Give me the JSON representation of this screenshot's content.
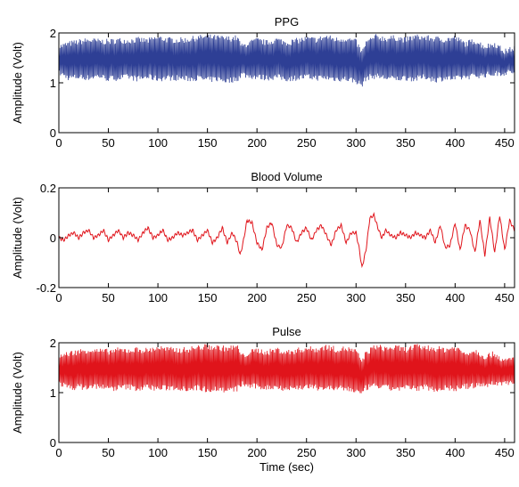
{
  "chart_data": [
    {
      "type": "line",
      "title": "PPG",
      "xlabel": "",
      "ylabel": "Amplitude (Volt)",
      "xlim": [
        0,
        460
      ],
      "ylim": [
        0,
        2
      ],
      "xticks": [
        0,
        50,
        100,
        150,
        200,
        250,
        300,
        350,
        400,
        450
      ],
      "xtick_labels": [
        "0",
        "50",
        "100",
        "150",
        "200",
        "250",
        "300",
        "350",
        "400",
        "450"
      ],
      "yticks": [
        0,
        1,
        2
      ],
      "ytick_labels": [
        "0",
        "1",
        "2"
      ],
      "color": "#2e3f95",
      "series": [
        {
          "x": [
            0,
            10,
            20,
            30,
            40,
            50,
            60,
            70,
            80,
            90,
            100,
            110,
            120,
            130,
            140,
            150,
            160,
            170,
            180,
            185,
            190,
            200,
            210,
            220,
            230,
            240,
            250,
            260,
            270,
            280,
            290,
            300,
            306,
            310,
            320,
            330,
            340,
            350,
            360,
            370,
            380,
            390,
            400,
            410,
            420,
            430,
            440,
            450,
            460
          ],
          "upper": [
            1.72,
            1.78,
            1.82,
            1.85,
            1.83,
            1.82,
            1.85,
            1.84,
            1.86,
            1.84,
            1.9,
            1.86,
            1.85,
            1.86,
            1.9,
            1.92,
            1.9,
            1.88,
            1.9,
            1.72,
            1.78,
            1.85,
            1.8,
            1.86,
            1.8,
            1.84,
            1.88,
            1.86,
            1.92,
            1.86,
            1.88,
            1.82,
            1.6,
            1.8,
            1.92,
            1.88,
            1.9,
            1.86,
            1.92,
            1.9,
            1.88,
            1.86,
            1.9,
            1.78,
            1.84,
            1.72,
            1.78,
            1.62,
            1.7
          ],
          "lower": [
            1.2,
            1.1,
            1.12,
            1.1,
            1.14,
            1.08,
            1.1,
            1.12,
            1.08,
            1.12,
            1.08,
            1.1,
            1.1,
            1.08,
            1.1,
            1.06,
            1.08,
            1.04,
            1.08,
            1.18,
            1.14,
            1.12,
            1.1,
            1.12,
            1.08,
            1.1,
            1.12,
            1.1,
            1.1,
            1.08,
            1.08,
            1.04,
            0.95,
            1.1,
            1.14,
            1.1,
            1.08,
            1.1,
            1.08,
            1.12,
            1.06,
            1.1,
            1.08,
            1.12,
            1.14,
            1.16,
            1.18,
            1.2,
            1.22
          ]
        }
      ]
    },
    {
      "type": "line",
      "title": "Blood Volume",
      "xlabel": "",
      "ylabel": "Amplitude (Volt)",
      "xlim": [
        0,
        460
      ],
      "ylim": [
        -0.2,
        0.2
      ],
      "xticks": [
        0,
        50,
        100,
        150,
        200,
        250,
        300,
        350,
        400,
        450
      ],
      "xtick_labels": [
        "0",
        "50",
        "100",
        "150",
        "200",
        "250",
        "300",
        "350",
        "400",
        "450"
      ],
      "yticks": [
        -0.2,
        0,
        0.2
      ],
      "ytick_labels": [
        "-0.2",
        "0",
        "0.2"
      ],
      "color": "#e0141b",
      "series": [
        {
          "x": [
            0,
            5,
            10,
            15,
            20,
            25,
            30,
            35,
            40,
            45,
            50,
            55,
            60,
            65,
            70,
            75,
            80,
            85,
            90,
            95,
            100,
            105,
            110,
            115,
            120,
            125,
            130,
            135,
            140,
            145,
            150,
            155,
            160,
            165,
            170,
            175,
            180,
            183,
            186,
            190,
            195,
            200,
            205,
            210,
            215,
            220,
            225,
            230,
            235,
            240,
            245,
            250,
            255,
            260,
            265,
            270,
            275,
            280,
            285,
            290,
            295,
            300,
            303,
            306,
            310,
            314,
            318,
            322,
            326,
            330,
            335,
            340,
            345,
            350,
            355,
            360,
            365,
            370,
            375,
            380,
            385,
            390,
            395,
            400,
            405,
            410,
            415,
            420,
            425,
            430,
            435,
            440,
            445,
            450,
            455,
            460
          ],
          "y": [
            0.0,
            -0.01,
            0.01,
            0.02,
            0.0,
            0.02,
            0.03,
            0.0,
            0.01,
            0.03,
            -0.01,
            0.01,
            0.03,
            0.0,
            0.02,
            0.01,
            -0.01,
            0.02,
            0.04,
            0.0,
            0.01,
            0.03,
            -0.01,
            0.0,
            0.02,
            0.01,
            0.02,
            0.03,
            -0.01,
            0.01,
            0.03,
            -0.02,
            0.0,
            0.04,
            -0.02,
            0.02,
            -0.02,
            -0.07,
            -0.02,
            0.07,
            0.06,
            -0.02,
            -0.05,
            0.04,
            0.06,
            -0.03,
            -0.04,
            0.05,
            0.04,
            -0.02,
            0.02,
            0.04,
            -0.01,
            0.03,
            0.05,
            0.01,
            -0.03,
            0.03,
            0.05,
            -0.02,
            0.02,
            0.02,
            -0.04,
            -0.12,
            -0.05,
            0.08,
            0.09,
            0.04,
            0.0,
            0.03,
            0.01,
            0.0,
            0.02,
            0.01,
            0.0,
            0.02,
            0.01,
            0.0,
            0.03,
            -0.02,
            0.05,
            -0.04,
            -0.03,
            0.06,
            -0.05,
            0.05,
            0.03,
            -0.06,
            0.07,
            -0.07,
            0.08,
            -0.06,
            0.09,
            -0.05,
            0.07,
            0.03
          ]
        }
      ]
    },
    {
      "type": "line",
      "title": "Pulse",
      "xlabel": "Time (sec)",
      "ylabel": "Amplitude (Volt)",
      "xlim": [
        0,
        460
      ],
      "ylim": [
        0,
        2
      ],
      "xticks": [
        0,
        50,
        100,
        150,
        200,
        250,
        300,
        350,
        400,
        450
      ],
      "xtick_labels": [
        "0",
        "50",
        "100",
        "150",
        "200",
        "250",
        "300",
        "350",
        "400",
        "450"
      ],
      "yticks": [
        0,
        1,
        2
      ],
      "ytick_labels": [
        "0",
        "1",
        "2"
      ],
      "color": "#e0141b",
      "series": [
        {
          "x": [
            0,
            10,
            20,
            30,
            40,
            50,
            60,
            70,
            80,
            90,
            100,
            110,
            120,
            130,
            140,
            150,
            160,
            170,
            180,
            185,
            190,
            200,
            210,
            220,
            230,
            240,
            250,
            260,
            270,
            280,
            290,
            300,
            306,
            310,
            320,
            330,
            340,
            350,
            360,
            370,
            380,
            390,
            400,
            410,
            420,
            430,
            440,
            450,
            460
          ],
          "upper": [
            1.72,
            1.78,
            1.82,
            1.85,
            1.83,
            1.82,
            1.85,
            1.84,
            1.86,
            1.84,
            1.9,
            1.86,
            1.85,
            1.86,
            1.9,
            1.92,
            1.9,
            1.88,
            1.92,
            1.72,
            1.78,
            1.85,
            1.8,
            1.86,
            1.8,
            1.84,
            1.88,
            1.86,
            1.92,
            1.86,
            1.88,
            1.82,
            1.62,
            1.8,
            1.92,
            1.88,
            1.9,
            1.86,
            1.92,
            1.9,
            1.88,
            1.86,
            1.9,
            1.78,
            1.84,
            1.72,
            1.78,
            1.62,
            1.7
          ],
          "lower": [
            1.2,
            1.1,
            1.12,
            1.1,
            1.14,
            1.08,
            1.1,
            1.12,
            1.08,
            1.12,
            1.08,
            1.1,
            1.1,
            1.08,
            1.1,
            1.06,
            1.08,
            1.04,
            1.08,
            1.18,
            1.14,
            1.12,
            1.1,
            1.12,
            1.08,
            1.1,
            1.12,
            1.1,
            1.1,
            1.08,
            1.08,
            1.04,
            0.96,
            1.1,
            1.14,
            1.1,
            1.08,
            1.1,
            1.08,
            1.12,
            1.06,
            1.1,
            1.08,
            1.12,
            1.14,
            1.16,
            1.18,
            1.2,
            1.22
          ]
        }
      ]
    }
  ]
}
